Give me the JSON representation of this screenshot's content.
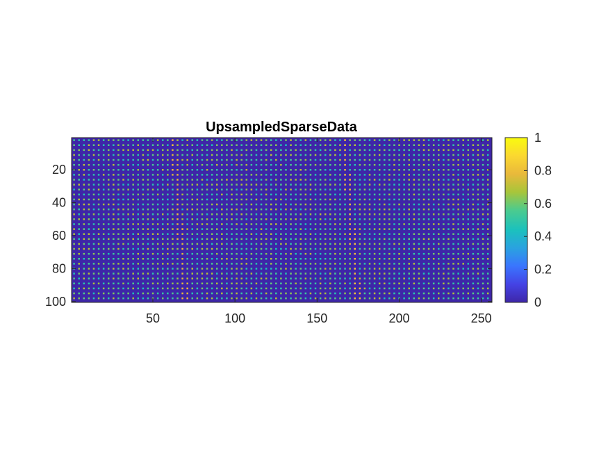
{
  "chart_data": {
    "type": "heatmap",
    "title": "UpsampledSparseData",
    "xlabel": "",
    "ylabel": "",
    "xlim": [
      0.5,
      256.5
    ],
    "ylim": [
      0.5,
      100.5
    ],
    "y_direction": "reverse",
    "x_ticks": [
      50,
      100,
      150,
      200,
      250
    ],
    "x_tick_labels": [
      "50",
      "100",
      "150",
      "200",
      "250"
    ],
    "y_ticks": [
      20,
      40,
      60,
      80,
      100
    ],
    "y_tick_labels": [
      "20",
      "40",
      "60",
      "80",
      "100"
    ],
    "grid": false,
    "colormap": "parula",
    "colorbar": {
      "position": "right",
      "clim": [
        0,
        1
      ],
      "ticks": [
        0,
        0.2,
        0.4,
        0.6,
        0.8,
        1
      ],
      "tick_labels": [
        "0",
        "0.2",
        "0.4",
        "0.6",
        "0.8",
        "1"
      ]
    },
    "matrix": {
      "rows": 100,
      "cols": 256,
      "sparse_sampling": {
        "nonzero_every_nth_row": 3,
        "nonzero_every_nth_col": 3,
        "first_nonzero_row": 2,
        "first_nonzero_col": 2,
        "background_value": 0.1
      },
      "features": [
        {
          "kind": "diagonal_band",
          "start": {
            "col": 62,
            "row": 1
          },
          "end": {
            "col": 70,
            "row": 100
          },
          "width_cols": 4,
          "peak": 0.82
        },
        {
          "kind": "diagonal_band",
          "start": {
            "col": 166,
            "row": 1
          },
          "end": {
            "col": 175,
            "row": 100
          },
          "width_cols": 4,
          "peak": 0.85
        }
      ],
      "typical_sample_value_range": [
        0.45,
        0.7
      ]
    }
  },
  "colors": {
    "axis": "#262626",
    "background": "#ffffff",
    "plot_background": "#3e26a8",
    "parula_stops": [
      "#3e26a8",
      "#4443e5",
      "#3a75fe",
      "#2aa2e0",
      "#1bc1bd",
      "#4ccb8e",
      "#a8c53a",
      "#e9b93b",
      "#fbd830",
      "#f9fb0e"
    ]
  }
}
